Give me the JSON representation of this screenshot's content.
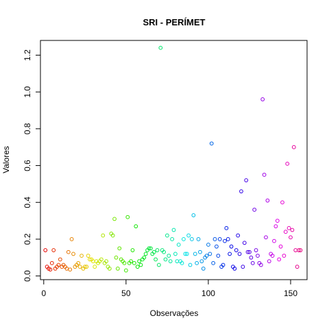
{
  "chart_data": {
    "type": "scatter",
    "title": "SRI - PERÍMET",
    "xlabel": "Observações",
    "ylabel": "Valores",
    "xlim": [
      -2,
      160
    ],
    "ylim": [
      -0.02,
      1.28
    ],
    "xticks": [
      0,
      50,
      100,
      150
    ],
    "xtick_labels": [
      "0",
      "50",
      "100",
      "150"
    ],
    "yticks": [
      0.0,
      0.2,
      0.4,
      0.6,
      0.8,
      1.0,
      1.2
    ],
    "ytick_labels": [
      "0.0",
      "0.2",
      "0.4",
      "0.6",
      "0.8",
      "1.0",
      "1.2"
    ],
    "grid": false,
    "marker": "open-circle",
    "color_scheme": "rainbow",
    "x": [
      1,
      2,
      3,
      4,
      5,
      6,
      7,
      8,
      9,
      10,
      11,
      12,
      13,
      14,
      15,
      16,
      17,
      18,
      19,
      20,
      21,
      22,
      23,
      24,
      25,
      26,
      27,
      28,
      29,
      30,
      31,
      32,
      33,
      34,
      35,
      36,
      37,
      38,
      39,
      40,
      41,
      42,
      43,
      44,
      45,
      46,
      47,
      48,
      49,
      50,
      51,
      52,
      53,
      54,
      55,
      56,
      57,
      58,
      59,
      60,
      61,
      62,
      63,
      64,
      65,
      66,
      67,
      68,
      69,
      70,
      71,
      72,
      73,
      74,
      75,
      76,
      77,
      78,
      79,
      80,
      81,
      82,
      83,
      84,
      85,
      86,
      87,
      88,
      89,
      90,
      91,
      92,
      93,
      94,
      95,
      96,
      97,
      98,
      99,
      100,
      101,
      102,
      103,
      104,
      105,
      106,
      107,
      108,
      109,
      110,
      111,
      112,
      113,
      114,
      115,
      116,
      117,
      118,
      119,
      120,
      121,
      122,
      123,
      124,
      125,
      126,
      127,
      128,
      129,
      130,
      131,
      132,
      133,
      134,
      135,
      136,
      137,
      138,
      139,
      140,
      141,
      142,
      143,
      144,
      145,
      146,
      147,
      148,
      149,
      150,
      151,
      152,
      153,
      154,
      155,
      156
    ],
    "y": [
      0.14,
      0.05,
      0.04,
      0.035,
      0.07,
      0.14,
      0.04,
      0.05,
      0.06,
      0.09,
      0.05,
      0.06,
      0.05,
      0.04,
      0.13,
      0.035,
      0.2,
      0.12,
      0.05,
      0.06,
      0.07,
      0.05,
      0.11,
      0.04,
      0.05,
      0.05,
      0.11,
      0.09,
      0.09,
      0.08,
      0.05,
      0.08,
      0.07,
      0.08,
      0.09,
      0.22,
      0.07,
      0.08,
      0.05,
      0.04,
      0.23,
      0.22,
      0.31,
      0.1,
      0.04,
      0.15,
      0.09,
      0.08,
      0.07,
      0.03,
      0.32,
      0.07,
      0.08,
      0.14,
      0.07,
      0.27,
      0.05,
      0.08,
      0.06,
      0.09,
      0.1,
      0.12,
      0.14,
      0.15,
      0.15,
      0.12,
      0.13,
      0.09,
      0.14,
      0.06,
      1.24,
      0.14,
      0.13,
      0.09,
      0.22,
      0.11,
      0.08,
      0.2,
      0.25,
      0.12,
      0.08,
      0.17,
      0.08,
      0.07,
      0.2,
      0.12,
      0.12,
      0.22,
      0.06,
      0.2,
      0.33,
      0.12,
      0.07,
      0.2,
      0.13,
      0.08,
      0.04,
      0.1,
      0.11,
      0.17,
      0.12,
      0.72,
      0.07,
      0.2,
      0.16,
      0.11,
      0.2,
      0.05,
      0.06,
      0.19,
      0.26,
      0.2,
      0.12,
      0.16,
      0.05,
      0.04,
      0.14,
      0.22,
      0.12,
      0.46,
      0.05,
      0.18,
      0.52,
      0.13,
      0.13,
      0.1,
      0.07,
      0.36,
      0.14,
      0.11,
      0.07,
      0.06,
      0.96,
      0.55,
      0.21,
      0.41,
      0.08,
      0.12,
      0.11,
      0.19,
      0.27,
      0.3,
      0.09,
      0.16,
      0.4,
      0.11,
      0.24,
      0.61,
      0.26,
      0.21,
      0.25,
      0.7,
      0.14,
      0.05,
      0.14,
      0.14
    ]
  }
}
